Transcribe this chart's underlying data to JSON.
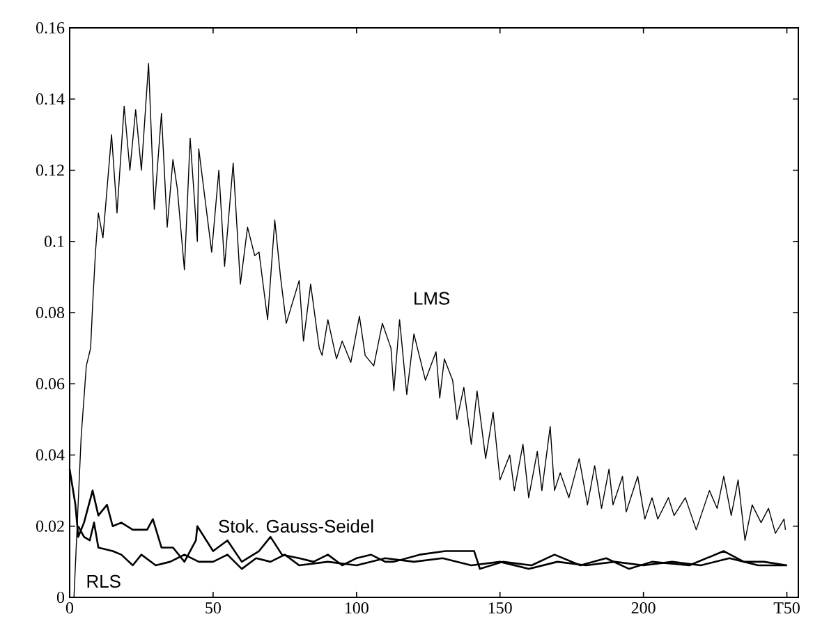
{
  "chart_data": {
    "type": "line",
    "xlim": [
      0,
      254
    ],
    "ylim": [
      0,
      0.16
    ],
    "xticks": [
      0,
      50,
      100,
      150,
      200,
      {
        "value": 250,
        "label": "T50"
      }
    ],
    "yticks": [
      0,
      0.02,
      0.04,
      0.06,
      0.08,
      0.1,
      0.12,
      0.14,
      0.16
    ],
    "series": [
      {
        "name": "LMS",
        "color": "#000000",
        "x": [
          0,
          1.5,
          4,
          5.8,
          7.3,
          8,
          9,
          10,
          11.6,
          14.6,
          16.5,
          19,
          21,
          23,
          25,
          27.5,
          29.5,
          32,
          34,
          36,
          37.5,
          40,
          42,
          44.5,
          45,
          49.5,
          52,
          54,
          57,
          59.5,
          62,
          64.5,
          66,
          69,
          71.5,
          73.5,
          75.5,
          80,
          81.5,
          84,
          87,
          88,
          90,
          93,
          95,
          98,
          101,
          103,
          106,
          109,
          112,
          113,
          115,
          117.5,
          120,
          124,
          127.7,
          129,
          130.6,
          133.5,
          135,
          137.4,
          140,
          142,
          145,
          147.6,
          150,
          153.4,
          155,
          158,
          160,
          163,
          164.6,
          167.5,
          169,
          171,
          174,
          177.6,
          180.5,
          183,
          185.4,
          188,
          189.4,
          192.7,
          194,
          198,
          200.5,
          203,
          205,
          208.7,
          210.7,
          214.6,
          218.4,
          223,
          225.7,
          228,
          230.6,
          233,
          235.4,
          237.9,
          241,
          243.6,
          246,
          249,
          249.5
        ],
        "values": [
          0,
          0,
          0.045,
          0.065,
          0.07,
          0.082,
          0.097,
          0.108,
          0.101,
          0.13,
          0.108,
          0.138,
          0.12,
          0.137,
          0.12,
          0.15,
          0.109,
          0.136,
          0.104,
          0.123,
          0.115,
          0.092,
          0.129,
          0.1,
          0.126,
          0.097,
          0.12,
          0.093,
          0.122,
          0.088,
          0.104,
          0.096,
          0.097,
          0.078,
          0.106,
          0.09,
          0.077,
          0.089,
          0.072,
          0.088,
          0.07,
          0.068,
          0.078,
          0.067,
          0.072,
          0.066,
          0.079,
          0.068,
          0.065,
          0.077,
          0.07,
          0.058,
          0.078,
          0.057,
          0.074,
          0.061,
          0.069,
          0.056,
          0.067,
          0.061,
          0.05,
          0.059,
          0.043,
          0.058,
          0.039,
          0.052,
          0.033,
          0.04,
          0.03,
          0.043,
          0.028,
          0.041,
          0.03,
          0.048,
          0.03,
          0.035,
          0.028,
          0.039,
          0.026,
          0.037,
          0.025,
          0.036,
          0.026,
          0.034,
          0.024,
          0.034,
          0.022,
          0.028,
          0.022,
          0.028,
          0.023,
          0.028,
          0.019,
          0.03,
          0.025,
          0.034,
          0.023,
          0.033,
          0.016,
          0.026,
          0.021,
          0.025,
          0.018,
          0.022,
          0.019
        ]
      },
      {
        "name": "Stok. Gauss-Seidel",
        "color": "#000000",
        "x": [
          0,
          2,
          3,
          5,
          8,
          10,
          13,
          15,
          18,
          22,
          27,
          29,
          32,
          36,
          40,
          44,
          44.5,
          50,
          55,
          60,
          66,
          70,
          74,
          80,
          85,
          90,
          95,
          100,
          105,
          110,
          113,
          122,
          131,
          141,
          143,
          151,
          161,
          169,
          178,
          187,
          195,
          203,
          216,
          228,
          235,
          242,
          250
        ],
        "values": [
          0.036,
          0.026,
          0.017,
          0.021,
          0.03,
          0.023,
          0.026,
          0.02,
          0.021,
          0.019,
          0.019,
          0.022,
          0.014,
          0.014,
          0.01,
          0.016,
          0.02,
          0.013,
          0.016,
          0.01,
          0.013,
          0.017,
          0.012,
          0.011,
          0.01,
          0.012,
          0.009,
          0.011,
          0.012,
          0.01,
          0.01,
          0.012,
          0.013,
          0.013,
          0.008,
          0.01,
          0.009,
          0.012,
          0.009,
          0.011,
          0.008,
          0.01,
          0.009,
          0.013,
          0.01,
          0.01,
          0.009
        ]
      },
      {
        "name": "RLS",
        "color": "#000000",
        "x": [
          3,
          5,
          7,
          8.5,
          10,
          15,
          18,
          22,
          25,
          30,
          35,
          40,
          45,
          50,
          55,
          60,
          65,
          70,
          75,
          80,
          90,
          100,
          110,
          120,
          130,
          140,
          150,
          160,
          170,
          180,
          190,
          200,
          210,
          220,
          230,
          240,
          250
        ],
        "values": [
          0.02,
          0.017,
          0.016,
          0.021,
          0.014,
          0.013,
          0.012,
          0.009,
          0.012,
          0.009,
          0.01,
          0.012,
          0.01,
          0.01,
          0.012,
          0.008,
          0.011,
          0.01,
          0.012,
          0.009,
          0.01,
          0.009,
          0.011,
          0.01,
          0.011,
          0.009,
          0.01,
          0.008,
          0.01,
          0.009,
          0.01,
          0.009,
          0.01,
          0.009,
          0.011,
          0.009,
          0.009
        ]
      }
    ]
  }
}
